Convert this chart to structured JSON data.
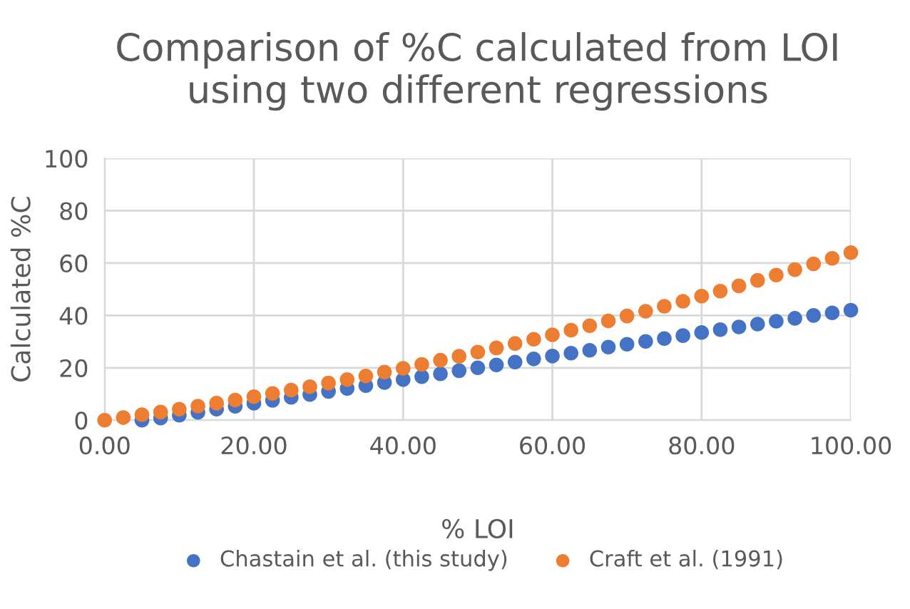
{
  "chart_data": {
    "type": "scatter",
    "title": "Comparison of %C calculated from LOI\nusing two different regressions",
    "xlabel": "% LOI",
    "ylabel": "Calculated %C",
    "xlim": [
      0,
      100
    ],
    "ylim": [
      0,
      100
    ],
    "xticks": [
      {
        "value": 0,
        "label": "0.00"
      },
      {
        "value": 20,
        "label": "20.00"
      },
      {
        "value": 40,
        "label": "40.00"
      },
      {
        "value": 60,
        "label": "60.00"
      },
      {
        "value": 80,
        "label": "80.00"
      },
      {
        "value": 100,
        "label": "100.00"
      }
    ],
    "yticks": [
      0,
      20,
      40,
      60,
      80,
      100
    ],
    "grid": true,
    "legend": "bottom",
    "marker": "circle",
    "series": [
      {
        "name": "Chastain et al. (this study)",
        "color": "#4472c4",
        "x": [
          5,
          7.5,
          10,
          12.5,
          15,
          17.5,
          20,
          22.5,
          25,
          27.5,
          30,
          32.5,
          35,
          37.5,
          40,
          42.5,
          45,
          47.5,
          50,
          52.5,
          55,
          57.5,
          60,
          62.5,
          65,
          67.5,
          70,
          72.5,
          75,
          77.5,
          80,
          82.5,
          85,
          87.5,
          90,
          92.5,
          95,
          97.5,
          100
        ],
        "values": [
          0,
          0.8,
          1.9,
          3.0,
          4.2,
          5.3,
          6.5,
          7.6,
          8.7,
          9.8,
          11,
          12.1,
          13.2,
          14.4,
          15.5,
          16.6,
          17.7,
          18.9,
          20,
          21.1,
          22.2,
          23.4,
          24.5,
          25.6,
          26.7,
          27.9,
          29,
          30.1,
          31.2,
          32.3,
          33.5,
          34.6,
          35.6,
          36.7,
          37.8,
          38.9,
          40,
          41,
          42
        ]
      },
      {
        "name": "Craft et al. (1991)",
        "color": "#ed7d31",
        "x": [
          0,
          2.5,
          5,
          7.5,
          10,
          12.5,
          15,
          17.5,
          20,
          22.5,
          25,
          27.5,
          30,
          32.5,
          35,
          37.5,
          40,
          42.5,
          45,
          47.5,
          50,
          52.5,
          55,
          57.5,
          60,
          62.5,
          65,
          67.5,
          70,
          72.5,
          75,
          77.5,
          80,
          82.5,
          85,
          87.5,
          90,
          92.5,
          95,
          97.5,
          100
        ],
        "values": [
          0,
          1.0,
          2.1,
          3.1,
          4.2,
          5.4,
          6.5,
          7.7,
          9.0,
          10.2,
          11.5,
          12.8,
          14.2,
          15.5,
          16.9,
          18.4,
          19.8,
          21.3,
          22.9,
          24.4,
          26.0,
          27.6,
          29.3,
          30.9,
          32.6,
          34.4,
          36.1,
          37.9,
          39.8,
          41.6,
          43.5,
          45.4,
          47.4,
          49.3,
          51.3,
          53.4,
          55.4,
          57.5,
          59.7,
          61.8,
          64.0
        ]
      }
    ]
  }
}
